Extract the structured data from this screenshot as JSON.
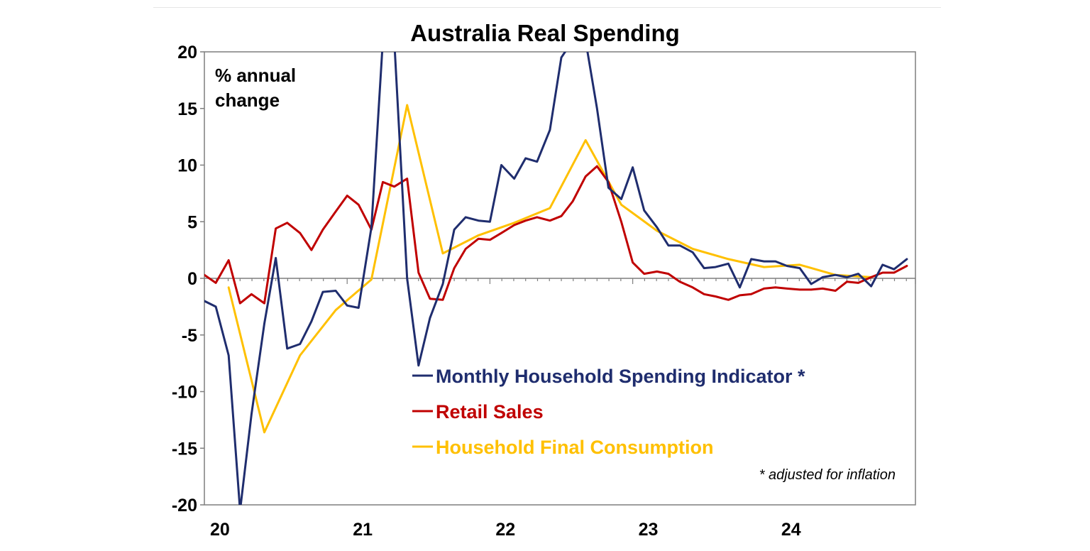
{
  "chart_data": {
    "type": "line",
    "title": "Australia Real Spending",
    "ylabel_lines": [
      "% annual",
      "change"
    ],
    "ylim": [
      -20,
      20
    ],
    "yticks": [
      "20",
      "15",
      "10",
      "5",
      "0",
      "-5",
      "-10",
      "-15",
      "-20"
    ],
    "ytick_values": [
      20,
      15,
      10,
      5,
      0,
      -5,
      -10,
      -15,
      -20
    ],
    "xlim": [
      2020.0,
      2024.98
    ],
    "xtick_labels": [
      "20",
      "21",
      "22",
      "23",
      "24"
    ],
    "xtick_values": [
      2020,
      2021,
      2022,
      2023,
      2024
    ],
    "grid": false,
    "legend_position": "lower-center",
    "note": "* adjusted for inflation",
    "series": [
      {
        "name": "Monthly Household Spending Indicator *",
        "color": "#1f2d6e",
        "x": [
          2020.0,
          2020.08,
          2020.17,
          2020.25,
          2020.33,
          2020.42,
          2020.5,
          2020.58,
          2020.67,
          2020.75,
          2020.83,
          2020.92,
          2021.0,
          2021.08,
          2021.17,
          2021.25,
          2021.33,
          2021.42,
          2021.5,
          2021.58,
          2021.67,
          2021.75,
          2021.83,
          2021.92,
          2022.0,
          2022.08,
          2022.17,
          2022.25,
          2022.33,
          2022.42,
          2022.5,
          2022.58,
          2022.67,
          2022.75,
          2022.83,
          2022.92,
          2023.0,
          2023.08,
          2023.17,
          2023.25,
          2023.33,
          2023.42,
          2023.5,
          2023.58,
          2023.67,
          2023.75,
          2023.83,
          2023.92,
          2024.0,
          2024.08,
          2024.17,
          2024.25,
          2024.33,
          2024.42,
          2024.5,
          2024.58,
          2024.67,
          2024.75,
          2024.83,
          2024.92
        ],
        "values": [
          -2.0,
          -2.5,
          -6.8,
          -20.5,
          -12.0,
          -4.0,
          1.8,
          -6.2,
          -5.8,
          -3.8,
          -1.2,
          -1.1,
          -2.4,
          -2.6,
          4.5,
          21.0,
          21.0,
          0.0,
          -7.7,
          -3.5,
          -0.5,
          4.3,
          5.4,
          5.1,
          5.0,
          10.0,
          8.8,
          10.6,
          10.3,
          13.1,
          19.5,
          21.0,
          21.0,
          15.0,
          8.0,
          7.0,
          9.8,
          6.0,
          4.5,
          2.9,
          2.9,
          2.3,
          0.9,
          1.0,
          1.3,
          -0.8,
          1.7,
          1.5,
          1.5,
          1.1,
          0.9,
          -0.5,
          0.1,
          0.3,
          0.1,
          0.4,
          -0.7,
          1.2,
          0.8,
          1.7
        ]
      },
      {
        "name": "Retail Sales",
        "color": "#c00000",
        "x": [
          2020.0,
          2020.08,
          2020.17,
          2020.25,
          2020.33,
          2020.42,
          2020.5,
          2020.58,
          2020.67,
          2020.75,
          2020.83,
          2020.92,
          2021.0,
          2021.08,
          2021.17,
          2021.25,
          2021.33,
          2021.42,
          2021.5,
          2021.58,
          2021.67,
          2021.75,
          2021.83,
          2021.92,
          2022.0,
          2022.08,
          2022.17,
          2022.25,
          2022.33,
          2022.42,
          2022.5,
          2022.58,
          2022.67,
          2022.75,
          2022.83,
          2022.92,
          2023.0,
          2023.08,
          2023.17,
          2023.25,
          2023.33,
          2023.42,
          2023.5,
          2023.58,
          2023.67,
          2023.75,
          2023.83,
          2023.92,
          2024.0,
          2024.08,
          2024.17,
          2024.25,
          2024.33,
          2024.42,
          2024.5,
          2024.58,
          2024.67,
          2024.75,
          2024.83,
          2024.92
        ],
        "values": [
          0.3,
          -0.4,
          1.6,
          -2.2,
          -1.4,
          -2.2,
          4.4,
          4.9,
          4.0,
          2.5,
          4.3,
          5.9,
          7.3,
          6.5,
          4.3,
          8.5,
          8.1,
          8.8,
          0.5,
          -1.8,
          -1.9,
          0.9,
          2.6,
          3.5,
          3.4,
          4.0,
          4.7,
          5.1,
          5.4,
          5.1,
          5.5,
          6.8,
          9.0,
          9.9,
          8.5,
          5.0,
          1.4,
          0.4,
          0.6,
          0.4,
          -0.3,
          -0.8,
          -1.4,
          -1.6,
          -1.9,
          -1.5,
          -1.4,
          -0.9,
          -0.8,
          -0.9,
          -1.0,
          -1.0,
          -0.9,
          -1.1,
          -0.3,
          -0.4,
          0.1,
          0.5,
          0.5,
          1.1
        ]
      },
      {
        "name": "Household Final Consumption",
        "color": "#ffc000",
        "x": [
          2020.17,
          2020.42,
          2020.67,
          2020.92,
          2021.17,
          2021.42,
          2021.67,
          2021.92,
          2022.17,
          2022.42,
          2022.67,
          2022.92,
          2023.17,
          2023.42,
          2023.67,
          2023.92,
          2024.17,
          2024.42,
          2024.67
        ],
        "values": [
          -0.8,
          -13.6,
          -6.8,
          -2.8,
          -0.1,
          15.3,
          2.2,
          3.8,
          4.9,
          6.2,
          12.2,
          6.5,
          4.2,
          2.6,
          1.7,
          1.0,
          1.2,
          0.3,
          0.1
        ]
      }
    ]
  }
}
